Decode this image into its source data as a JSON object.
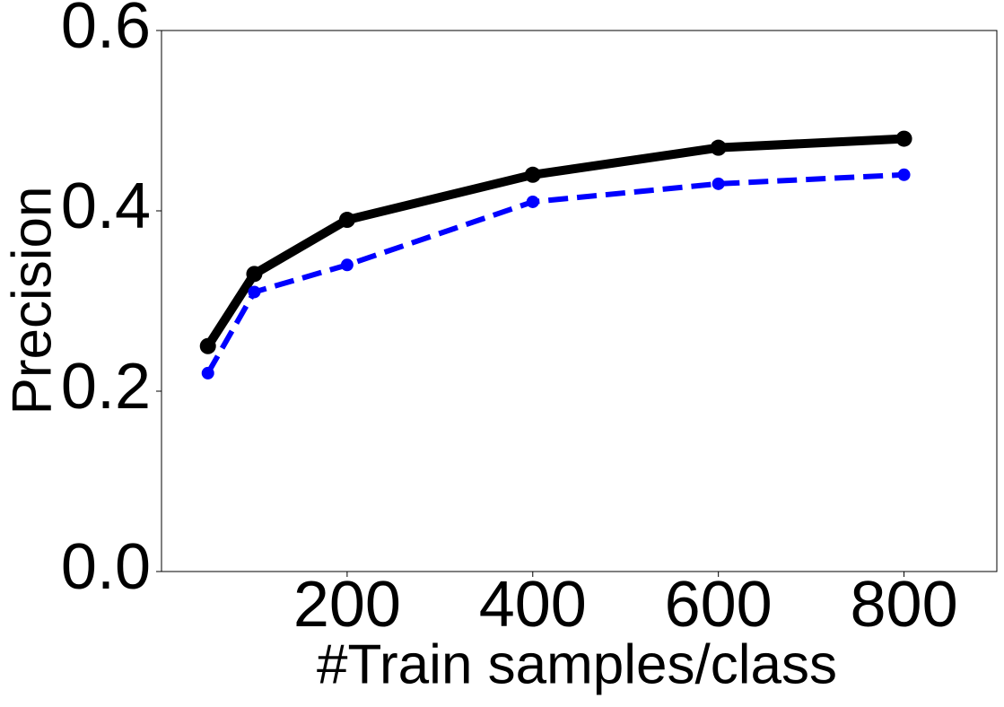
{
  "chart_data": {
    "type": "line",
    "xlabel": "#Train samples/class",
    "ylabel": "Precision",
    "x": [
      50,
      100,
      200,
      400,
      600,
      800
    ],
    "series": [
      {
        "color": "#000000",
        "linestyle": "solid",
        "values": [
          0.25,
          0.33,
          0.39,
          0.44,
          0.47,
          0.48
        ]
      },
      {
        "color": "#0000ff",
        "linestyle": "dashed",
        "values": [
          0.22,
          0.31,
          0.34,
          0.41,
          0.43,
          0.44
        ]
      }
    ],
    "xlim": [
      0,
      900
    ],
    "xticks": [
      200,
      400,
      600,
      800
    ],
    "ylim": [
      0,
      0.6
    ],
    "yticks": [
      {
        "value": 0,
        "label": "0.0"
      },
      0.2,
      0.4,
      0.6
    ],
    "grid": false
  }
}
